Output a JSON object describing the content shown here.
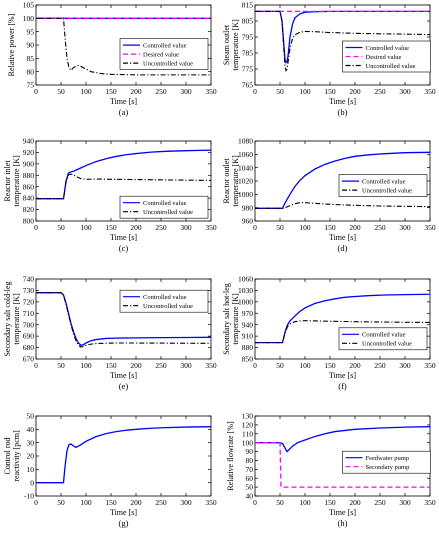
{
  "chart_data": [
    {
      "type": "line",
      "caption": "(a)",
      "xlabel": "Time [s]",
      "ylabel": "Relative power [%]",
      "xlim": [
        0,
        350
      ],
      "ylim": [
        75,
        105
      ],
      "xticks": [
        0,
        50,
        100,
        150,
        200,
        250,
        300,
        350
      ],
      "yticks": [
        75,
        80,
        85,
        90,
        95,
        100,
        105
      ],
      "grid": false,
      "legend": "top-right",
      "series": [
        {
          "name": "Controlled value",
          "color": "#0000ff",
          "style": "solid",
          "x": [
            0,
            60,
            350
          ],
          "y": [
            100,
            100,
            100
          ]
        },
        {
          "name": "Desired value",
          "color": "#ff00ff",
          "style": "dashed",
          "x": [
            0,
            350
          ],
          "y": [
            100,
            100
          ]
        },
        {
          "name": "Uncontrolled value",
          "color": "#000000",
          "style": "dashdot",
          "x": [
            0,
            55,
            58,
            62,
            66,
            70,
            75,
            80,
            85,
            90,
            100,
            110,
            130,
            150,
            175,
            200,
            250,
            300,
            350
          ],
          "y": [
            100,
            100,
            93,
            85,
            81.5,
            80.5,
            81.5,
            82,
            82.3,
            82,
            81,
            80,
            79.3,
            79,
            78.9,
            78.8,
            78.8,
            78.8,
            78.8
          ]
        }
      ]
    },
    {
      "type": "line",
      "caption": "(b)",
      "xlabel": "Time [s]",
      "ylabel": "Steam outlet temperature [K]",
      "xlim": [
        0,
        350
      ],
      "ylim": [
        765,
        815
      ],
      "xticks": [
        0,
        50,
        100,
        150,
        200,
        250,
        300,
        350
      ],
      "yticks": [
        765,
        775,
        785,
        795,
        805,
        815
      ],
      "grid": false,
      "legend": "right",
      "series": [
        {
          "name": "Controlled value",
          "color": "#0000ff",
          "style": "solid",
          "x": [
            0,
            50,
            54,
            57,
            60,
            62,
            64,
            66,
            70,
            75,
            80,
            90,
            100,
            120,
            150,
            200,
            350
          ],
          "y": [
            811,
            811,
            805,
            793,
            781,
            779,
            779.5,
            783,
            795,
            803,
            807,
            809.5,
            810.5,
            810.8,
            811,
            811,
            811
          ]
        },
        {
          "name": "Desired value",
          "color": "#ff00ff",
          "style": "dashed",
          "x": [
            0,
            350
          ],
          "y": [
            811,
            811
          ]
        },
        {
          "name": "Uncontrolled value",
          "color": "#000000",
          "style": "dashdot",
          "x": [
            0,
            50,
            54,
            57,
            60,
            62,
            64,
            66,
            70,
            75,
            80,
            90,
            100,
            120,
            150,
            200,
            250,
            300,
            350
          ],
          "y": [
            811,
            811,
            805,
            790,
            777,
            774,
            775,
            779,
            788,
            794,
            796.5,
            798,
            798.5,
            798.3,
            797.8,
            797.3,
            797,
            796.8,
            796.5
          ]
        }
      ]
    },
    {
      "type": "line",
      "caption": "(c)",
      "xlabel": "Time [s]",
      "ylabel": "Reactor inlet temperature [K]",
      "xlim": [
        0,
        350
      ],
      "ylim": [
        800,
        940
      ],
      "xticks": [
        0,
        50,
        100,
        150,
        200,
        250,
        300,
        350
      ],
      "yticks": [
        800,
        820,
        840,
        860,
        880,
        900,
        920,
        940
      ],
      "grid": false,
      "legend": "bottom-right",
      "series": [
        {
          "name": "Controlled value",
          "color": "#0000ff",
          "style": "solid",
          "x": [
            0,
            55,
            60,
            65,
            70,
            75,
            80,
            90,
            100,
            120,
            140,
            160,
            180,
            200,
            230,
            260,
            300,
            350
          ],
          "y": [
            839,
            839,
            870,
            884,
            886,
            887,
            889,
            893,
            897,
            904,
            909,
            913,
            916,
            918,
            920.5,
            922,
            923,
            924
          ]
        },
        {
          "name": "Uncontrolled value",
          "color": "#000000",
          "style": "dashdot",
          "x": [
            0,
            55,
            60,
            65,
            70,
            75,
            80,
            90,
            100,
            120,
            150,
            200,
            250,
            300,
            350
          ],
          "y": [
            839,
            839,
            868,
            881,
            882,
            881,
            878,
            874,
            873,
            873.5,
            873,
            872.5,
            872,
            871.5,
            871
          ]
        }
      ]
    },
    {
      "type": "line",
      "caption": "(d)",
      "xlabel": "Time [s]",
      "ylabel": "Reactor outlet temperature [K]",
      "xlim": [
        0,
        350
      ],
      "ylim": [
        960,
        1080
      ],
      "xticks": [
        0,
        50,
        100,
        150,
        200,
        250,
        300,
        350
      ],
      "yticks": [
        960,
        980,
        1000,
        1020,
        1040,
        1060,
        1080
      ],
      "grid": false,
      "legend": "right",
      "series": [
        {
          "name": "Controlled value",
          "color": "#0000ff",
          "style": "solid",
          "x": [
            0,
            55,
            60,
            70,
            80,
            90,
            100,
            120,
            140,
            160,
            180,
            200,
            230,
            260,
            300,
            350
          ],
          "y": [
            979,
            979,
            987,
            1000,
            1012,
            1021,
            1028,
            1038,
            1045,
            1050,
            1054,
            1057,
            1059.5,
            1061,
            1062.5,
            1063
          ]
        },
        {
          "name": "Uncontrolled value",
          "color": "#000000",
          "style": "dashdot",
          "x": [
            0,
            55,
            60,
            70,
            80,
            90,
            100,
            110,
            130,
            150,
            200,
            250,
            300,
            350
          ],
          "y": [
            979,
            979,
            980,
            983,
            986,
            987.5,
            987.5,
            987,
            986,
            985,
            983.5,
            982.5,
            982,
            981.5
          ]
        }
      ]
    },
    {
      "type": "line",
      "caption": "(e)",
      "xlabel": "Time [s]",
      "ylabel": "Secondary salt cold-leg temperature [K]",
      "xlim": [
        0,
        350
      ],
      "ylim": [
        670,
        740
      ],
      "xticks": [
        0,
        50,
        100,
        150,
        200,
        250,
        300,
        350
      ],
      "yticks": [
        670,
        680,
        690,
        700,
        710,
        720,
        730,
        740
      ],
      "grid": false,
      "legend": "top-right",
      "series": [
        {
          "name": "Controlled value",
          "color": "#0000ff",
          "style": "solid",
          "x": [
            0,
            50,
            55,
            60,
            65,
            70,
            75,
            80,
            85,
            90,
            95,
            100,
            110,
            120,
            140,
            160,
            200,
            250,
            300,
            350
          ],
          "y": [
            728,
            728,
            726,
            719,
            710,
            701,
            694,
            688,
            684,
            682,
            682.5,
            684,
            686,
            687,
            688,
            688.3,
            688.5,
            688.7,
            688.8,
            689
          ]
        },
        {
          "name": "Uncontrolled value",
          "color": "#000000",
          "style": "dashdot",
          "x": [
            0,
            50,
            55,
            60,
            65,
            70,
            75,
            80,
            85,
            90,
            95,
            100,
            110,
            120,
            140,
            160,
            200,
            250,
            300,
            350
          ],
          "y": [
            728,
            728,
            726,
            718,
            709,
            700,
            692,
            686,
            682,
            680.5,
            681,
            682,
            683,
            683.5,
            683.8,
            684,
            684,
            683.9,
            683.8,
            683.7
          ]
        }
      ]
    },
    {
      "type": "line",
      "caption": "(f)",
      "xlabel": "Time [s]",
      "ylabel": "Secondary salt hot-leg temperature [K]",
      "xlim": [
        0,
        350
      ],
      "ylim": [
        850,
        1060
      ],
      "xticks": [
        0,
        50,
        100,
        150,
        200,
        250,
        300,
        350
      ],
      "yticks": [
        850,
        880,
        910,
        940,
        970,
        1000,
        1030,
        1060
      ],
      "grid": false,
      "legend": "right",
      "series": [
        {
          "name": "Controlled value",
          "color": "#0000ff",
          "style": "solid",
          "x": [
            0,
            55,
            60,
            65,
            70,
            80,
            90,
            100,
            120,
            140,
            160,
            180,
            200,
            230,
            260,
            300,
            350
          ],
          "y": [
            893,
            893,
            920,
            940,
            950,
            963,
            975,
            984,
            996,
            1003,
            1008,
            1012,
            1014,
            1016.5,
            1018,
            1019,
            1020
          ]
        },
        {
          "name": "Uncontrolled value",
          "color": "#000000",
          "style": "dashdot",
          "x": [
            0,
            55,
            60,
            65,
            70,
            80,
            90,
            100,
            120,
            150,
            200,
            250,
            300,
            350
          ],
          "y": [
            893,
            893,
            918,
            935,
            942,
            948,
            950,
            950.5,
            950,
            949,
            948,
            947,
            946.5,
            946
          ]
        }
      ]
    },
    {
      "type": "line",
      "caption": "(g)",
      "xlabel": "Time [s]",
      "ylabel": "Control rod reactivity [pcm]",
      "xlim": [
        0,
        350
      ],
      "ylim": [
        -10,
        50
      ],
      "xticks": [
        0,
        50,
        100,
        150,
        200,
        250,
        300,
        350
      ],
      "yticks": [
        -10,
        0,
        10,
        20,
        30,
        40,
        50
      ],
      "grid": false,
      "legend": "none",
      "series": [
        {
          "name": "",
          "color": "#0000ff",
          "style": "solid",
          "x": [
            0,
            55,
            58,
            62,
            66,
            70,
            75,
            80,
            90,
            100,
            120,
            140,
            160,
            180,
            200,
            230,
            260,
            300,
            350
          ],
          "y": [
            0,
            0,
            12,
            24,
            28.5,
            29,
            27.5,
            26.5,
            28.5,
            31,
            34.5,
            36.8,
            38.3,
            39.3,
            40,
            40.8,
            41.3,
            41.7,
            42
          ]
        }
      ]
    },
    {
      "type": "line",
      "caption": "(h)",
      "xlabel": "Time [s]",
      "ylabel": "Relative flowrate [%]",
      "xlim": [
        0,
        350
      ],
      "ylim": [
        40,
        130
      ],
      "xticks": [
        0,
        50,
        100,
        150,
        200,
        250,
        300,
        350
      ],
      "yticks": [
        40,
        50,
        60,
        70,
        80,
        90,
        100,
        110,
        120,
        130
      ],
      "grid": false,
      "legend": "right",
      "series": [
        {
          "name": "Feedwater pump",
          "color": "#0000ff",
          "style": "solid",
          "x": [
            0,
            50,
            55,
            60,
            64,
            68,
            75,
            85,
            100,
            120,
            140,
            160,
            200,
            250,
            300,
            350
          ],
          "y": [
            100,
            100,
            99,
            94,
            90,
            92,
            96,
            100,
            103,
            107,
            110,
            112.5,
            115,
            116.5,
            117.5,
            118
          ]
        },
        {
          "name": "Secondary pump",
          "color": "#ff00ff",
          "style": "dashed",
          "x": [
            0,
            50,
            52,
            350
          ],
          "y": [
            100,
            100,
            50,
            50
          ]
        }
      ]
    }
  ]
}
